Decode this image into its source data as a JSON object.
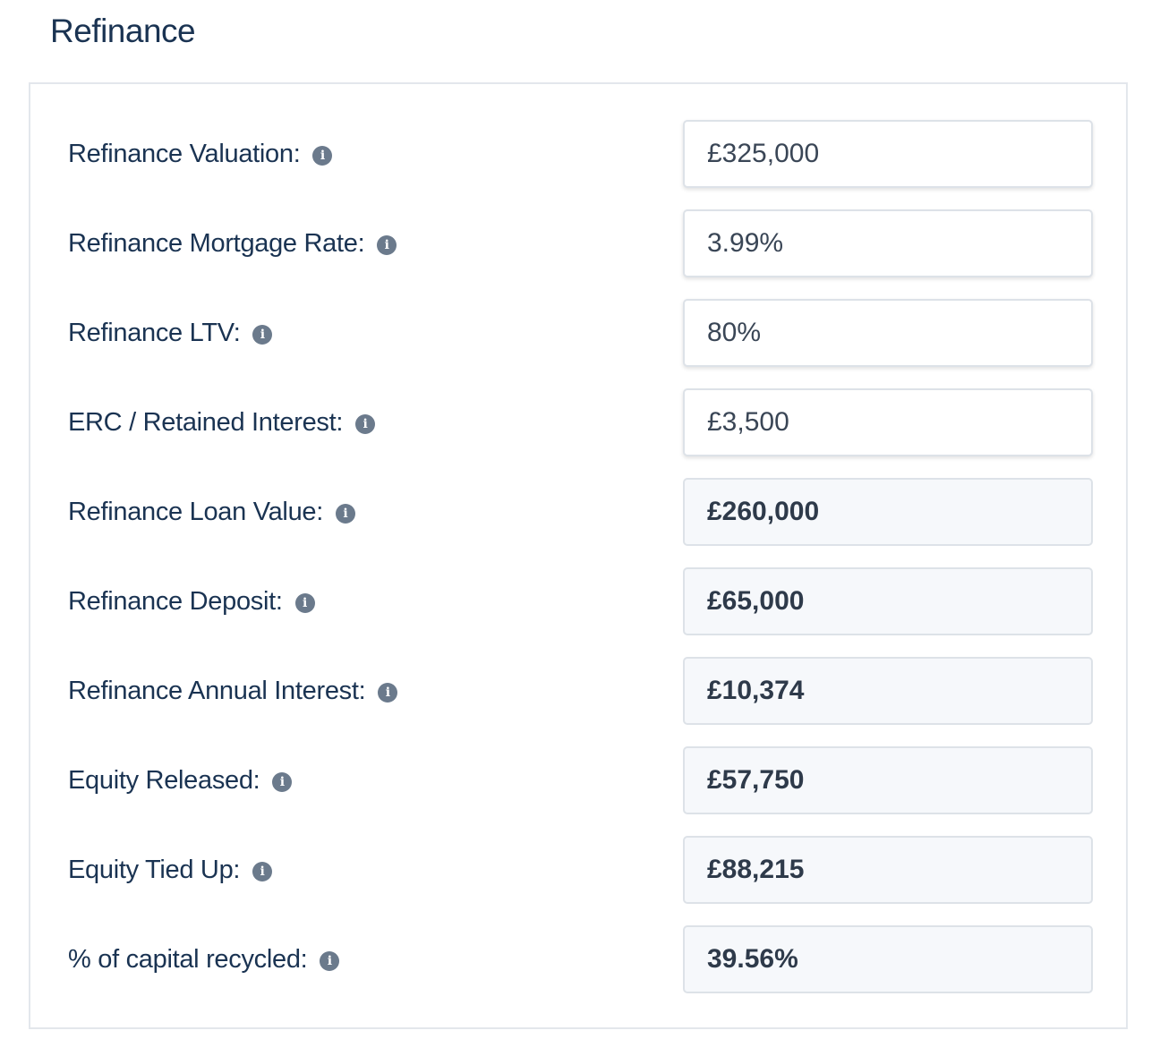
{
  "section": {
    "title": "Refinance"
  },
  "icons": {
    "info": "info-icon",
    "info_glyph": "i"
  },
  "colors": {
    "title_text": "#1a3352",
    "info_icon_bg": "#6b7a8c",
    "readonly_bg": "#f6f8fb",
    "border": "#dde2e8"
  },
  "fields": [
    {
      "label": "Refinance Valuation:",
      "value": "£325,000",
      "editable": true
    },
    {
      "label": "Refinance Mortgage Rate:",
      "value": "3.99%",
      "editable": true
    },
    {
      "label": "Refinance LTV:",
      "value": "80%",
      "editable": true
    },
    {
      "label": "ERC / Retained Interest:",
      "value": "£3,500",
      "editable": true
    },
    {
      "label": "Refinance Loan Value:",
      "value": "£260,000",
      "editable": false
    },
    {
      "label": "Refinance Deposit:",
      "value": "£65,000",
      "editable": false
    },
    {
      "label": "Refinance Annual Interest:",
      "value": "£10,374",
      "editable": false
    },
    {
      "label": "Equity Released:",
      "value": "£57,750",
      "editable": false
    },
    {
      "label": "Equity Tied Up:",
      "value": "£88,215",
      "editable": false
    },
    {
      "label": "% of capital recycled:",
      "value": "39.56%",
      "editable": false
    }
  ]
}
